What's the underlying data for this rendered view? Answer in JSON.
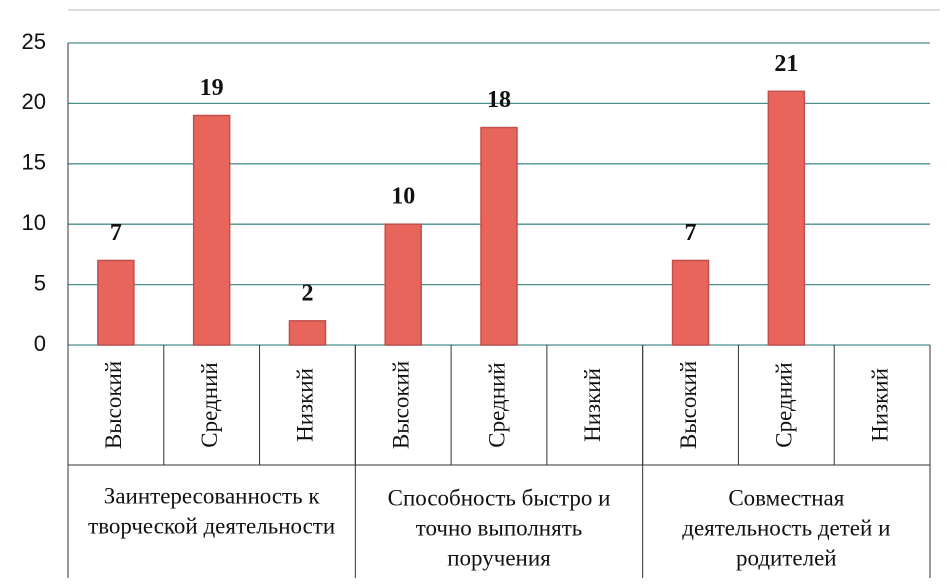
{
  "chart_data": {
    "type": "bar",
    "categories": [
      "Высокий",
      "Средний",
      "Низкий",
      "Высокий",
      "Средний",
      "Низкий",
      "Высокий",
      "Средний",
      "Низкий"
    ],
    "groups": [
      {
        "lines": [
          "Заинтересованность к",
          "творческой деятельности"
        ],
        "size": 3
      },
      {
        "lines": [
          "Способность быстро и",
          "точно  выполнять",
          "поручения"
        ],
        "size": 3
      },
      {
        "lines": [
          "Совместная",
          "деятельность детей и",
          "родителей"
        ],
        "size": 3
      }
    ],
    "values": [
      7,
      19,
      2,
      10,
      18,
      null,
      7,
      21,
      null
    ],
    "color": "#e8655b",
    "ylim": [
      0,
      25
    ],
    "yticks": [
      0,
      5,
      10,
      15,
      20,
      25
    ],
    "grid": true
  }
}
